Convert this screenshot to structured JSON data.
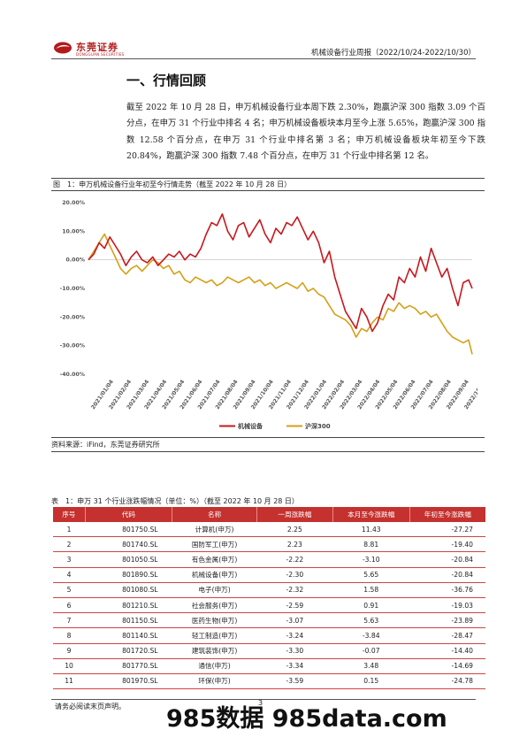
{
  "header": {
    "logo_text": "东莞证券",
    "logo_sub": "DONGGUAN SECURITIES",
    "report_title": "机械设备行业周报（2022/10/24-2022/10/30）"
  },
  "section": {
    "title": "一、行情回顾",
    "paragraph": "截至 2022 年 10 月 28 日，申万机械设备行业本周下跌 2.30%，跑赢沪深 300 指数 3.09 个百分点，在申万 31 个行业中排名 4 名；申万机械设备板块本月至今上涨 5.65%，跑赢沪深 300 指数 12.58 个百分点，在申万 31 个行业中排名第 3 名；申万机械设备板块年初至今下跌 20.84%，跑赢沪深 300 指数 7.48 个百分点，在申万 31 个行业中排名第 12 名。"
  },
  "figure": {
    "caption": "图　1：申万机械设备行业年初至今行情走势（截至 2022 年 10 月 28 日）",
    "source": "资料来源：iFind，东莞证券研究所"
  },
  "chart_data": {
    "type": "line",
    "ylim": [
      -40,
      20
    ],
    "yticks": [
      "20.00%",
      "10.00%",
      "0.00%",
      "-10.00%",
      "-20.00%",
      "-30.00%",
      "-40.00%"
    ],
    "xticks": [
      "2021/01/04",
      "2021/02/04",
      "2021/03/04",
      "2021/04/04",
      "2021/05/04",
      "2021/06/04",
      "2021/07/04",
      "2021/08/04",
      "2021/09/04",
      "2021/10/04",
      "2021/11/04",
      "2021/12/04",
      "2022/01/04",
      "2022/02/04",
      "2022/03/04",
      "2022/04/04",
      "2022/05/04",
      "2022/06/04",
      "2022/07/04",
      "2022/08/04",
      "2022/09/04",
      "2022/10/04"
    ],
    "grid": false,
    "legend": "bottom",
    "colors": {
      "machinery": "#c8171c",
      "hs300": "#d4a017"
    },
    "series": [
      {
        "name": "机械设备",
        "x": [
          0,
          0.3,
          0.6,
          0.9,
          1.2,
          1.5,
          1.8,
          2.1,
          2.4,
          2.7,
          3.0,
          3.3,
          3.6,
          3.9,
          4.2,
          4.5,
          4.8,
          5.1,
          5.4,
          5.7,
          6.0,
          6.3,
          6.6,
          6.9,
          7.2,
          7.5,
          7.8,
          8.1,
          8.4,
          8.7,
          9.0,
          9.3,
          9.6,
          9.9,
          10.2,
          10.5,
          10.8,
          11.1,
          11.4,
          11.7,
          12.0,
          12.3,
          12.6,
          12.9,
          13.2,
          13.5,
          13.8,
          14.1,
          14.4,
          14.7,
          15.0,
          15.3,
          15.6,
          15.9,
          16.2,
          16.5,
          16.8,
          17.1,
          17.4,
          17.7,
          18.0,
          18.3,
          18.6,
          18.9,
          19.2,
          19.5,
          19.8,
          20.1,
          20.4,
          20.7,
          21.0,
          21.3,
          21.5
        ],
        "y": [
          0,
          2,
          6,
          4,
          8,
          5,
          2,
          -2,
          1,
          3,
          0,
          -1,
          1,
          -2,
          0,
          2,
          1,
          3,
          0,
          2,
          1,
          4,
          9,
          13,
          12,
          16,
          10,
          7,
          12,
          13,
          8,
          11,
          14,
          9,
          6,
          11,
          9,
          13,
          12,
          15,
          11,
          7,
          10,
          6,
          -1,
          3,
          -6,
          -12,
          -18,
          -21,
          -24,
          -17,
          -20,
          -25,
          -22,
          -16,
          -12,
          -14,
          -6,
          -8,
          -3,
          -6,
          1,
          -4,
          4,
          -1,
          -6,
          -3,
          -10,
          -16,
          -8,
          -7,
          -10
        ]
      },
      {
        "name": "沪深300",
        "x": [
          0,
          0.3,
          0.6,
          0.9,
          1.2,
          1.5,
          1.8,
          2.1,
          2.4,
          2.7,
          3.0,
          3.3,
          3.6,
          3.9,
          4.2,
          4.5,
          4.8,
          5.1,
          5.4,
          5.7,
          6.0,
          6.3,
          6.6,
          6.9,
          7.2,
          7.5,
          7.8,
          8.1,
          8.4,
          8.7,
          9.0,
          9.3,
          9.6,
          9.9,
          10.2,
          10.5,
          10.8,
          11.1,
          11.4,
          11.7,
          12.0,
          12.3,
          12.6,
          12.9,
          13.2,
          13.5,
          13.8,
          14.1,
          14.4,
          14.7,
          15.0,
          15.3,
          15.6,
          15.9,
          16.2,
          16.5,
          16.8,
          17.1,
          17.4,
          17.7,
          18.0,
          18.3,
          18.6,
          18.9,
          19.2,
          19.5,
          19.8,
          20.1,
          20.4,
          20.7,
          21.0,
          21.3,
          21.5
        ],
        "y": [
          0,
          3,
          6,
          9,
          5,
          1,
          -3,
          -5,
          -3,
          -2,
          -4,
          -2,
          0,
          -1,
          -3,
          -2,
          -5,
          -4,
          -7,
          -8,
          -6,
          -7,
          -8,
          -7,
          -9,
          -8,
          -6,
          -7,
          -8,
          -7,
          -6,
          -8,
          -7,
          -9,
          -8,
          -10,
          -9,
          -8,
          -9,
          -10,
          -8,
          -11,
          -10,
          -12,
          -13,
          -16,
          -19,
          -20,
          -21,
          -23,
          -27,
          -24,
          -25,
          -22,
          -20,
          -21,
          -17,
          -18,
          -15,
          -17,
          -16,
          -17,
          -19,
          -18,
          -20,
          -19,
          -22,
          -25,
          -27,
          -28,
          -29,
          -28,
          -33
        ]
      }
    ]
  },
  "table": {
    "caption": "表　1：申万 31 个行业涨跌幅情况（单位：%）（截至 2022 年 10 月 28 日）",
    "headers": [
      "序号",
      "代码",
      "名称",
      "一周涨跌幅",
      "本月至今涨跌幅",
      "年初至今涨跌幅"
    ],
    "rows": [
      [
        "1",
        "801750.SL",
        "计算机(申万)",
        "2.25",
        "11.43",
        "-27.27"
      ],
      [
        "2",
        "801740.SL",
        "国防军工(申万)",
        "2.23",
        "8.81",
        "-19.40"
      ],
      [
        "3",
        "801050.SL",
        "有色金属(申万)",
        "-2.22",
        "-3.10",
        "-20.84"
      ],
      [
        "4",
        "801890.SL",
        "机械设备(申万)",
        "-2.30",
        "5.65",
        "-20.84"
      ],
      [
        "5",
        "801080.SL",
        "电子(申万)",
        "-2.32",
        "1.58",
        "-36.76"
      ],
      [
        "6",
        "801210.SL",
        "社会服务(申万)",
        "-2.59",
        "0.91",
        "-19.03"
      ],
      [
        "7",
        "801150.SL",
        "医药生物(申万)",
        "-3.07",
        "5.63",
        "-23.89"
      ],
      [
        "8",
        "801140.SL",
        "轻工制造(申万)",
        "-3.24",
        "-3.84",
        "-28.47"
      ],
      [
        "9",
        "801720.SL",
        "建筑装饰(申万)",
        "-3.30",
        "-0.07",
        "-14.40"
      ],
      [
        "10",
        "801770.SL",
        "通信(申万)",
        "-3.34",
        "3.48",
        "-14.69"
      ],
      [
        "11",
        "801970.SL",
        "环保(申万)",
        "-3.59",
        "0.15",
        "-24.78"
      ]
    ]
  },
  "footer": {
    "note": "请务必阅读末页声明。",
    "page": "3",
    "watermark": "985数据 985data.com"
  }
}
